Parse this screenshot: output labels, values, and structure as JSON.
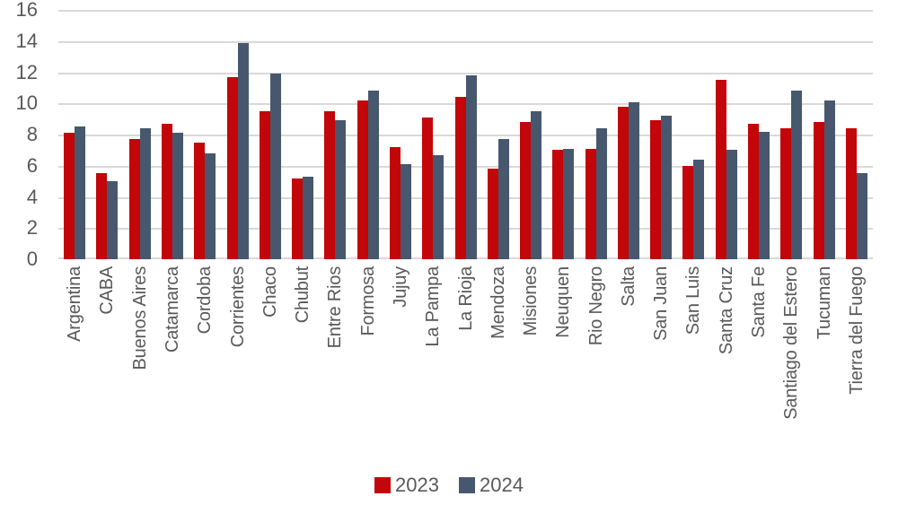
{
  "chart_data": {
    "type": "bar",
    "title": "",
    "xlabel": "",
    "ylabel": "",
    "ylim": [
      0,
      16
    ],
    "yticks": [
      0,
      2,
      4,
      6,
      8,
      10,
      12,
      14,
      16
    ],
    "grid": true,
    "legend_position": "bottom",
    "categories": [
      "Argentina",
      "CABA",
      "Buenos Aires",
      "Catamarca",
      "Cordoba",
      "Corrientes",
      "Chaco",
      "Chubut",
      "Entre Rios",
      "Formosa",
      "Jujuy",
      "La Pampa",
      "La Rioja",
      "Mendoza",
      "Misiones",
      "Neuquen",
      "Rio Negro",
      "Salta",
      "San Juan",
      "San Luis",
      "Santa Cruz",
      "Santa Fe",
      "Santiago del Estero",
      "Tucuman",
      "Tierra del Fuego"
    ],
    "series": [
      {
        "name": "2023",
        "color": "#C20609",
        "values": [
          8.1,
          5.5,
          7.7,
          8.7,
          7.5,
          11.7,
          9.5,
          5.2,
          9.5,
          10.2,
          7.2,
          9.1,
          10.4,
          5.8,
          8.8,
          7.0,
          7.1,
          9.8,
          8.9,
          6.0,
          11.5,
          8.7,
          8.4,
          8.8,
          8.4
        ]
      },
      {
        "name": "2024",
        "color": "#47586E",
        "values": [
          8.5,
          5.0,
          8.4,
          8.1,
          6.8,
          13.9,
          11.9,
          5.3,
          8.9,
          10.8,
          6.1,
          6.7,
          11.8,
          7.7,
          9.5,
          7.1,
          8.4,
          10.1,
          9.2,
          6.4,
          7.0,
          8.2,
          10.8,
          10.2,
          5.5
        ]
      }
    ],
    "colors": {
      "gridline": "#D9D9D9",
      "axis_text": "#595959",
      "background": "#FFFFFF"
    }
  }
}
